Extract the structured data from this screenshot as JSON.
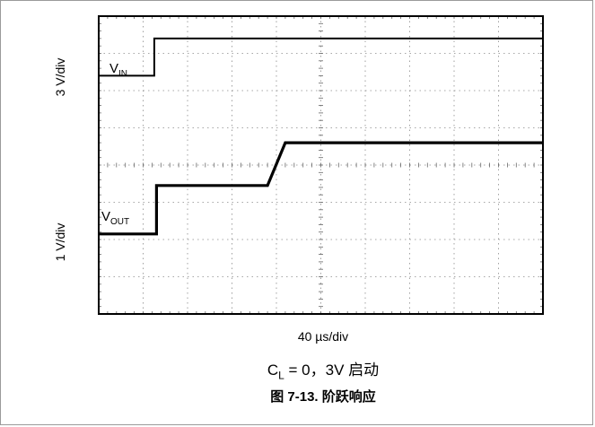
{
  "chart_data": {
    "type": "line",
    "title": "图 7-13. 阶跃响应",
    "subtitle_main": "C",
    "subtitle_sub": "L",
    "subtitle_rest": " = 0，3V 启动",
    "xlabel": "40 µs/div",
    "ylabel_top": "3 V/div",
    "ylabel_bottom": "1 V/div",
    "grid": true,
    "x_divisions": 10,
    "y_divisions": 8,
    "xlim": [
      0,
      10
    ],
    "ylim": [
      0,
      8
    ],
    "series": [
      {
        "name_main": "V",
        "name_sub": "IN",
        "color": "#000000",
        "x": [
          0,
          1.25,
          1.25,
          10
        ],
        "y": [
          6.4,
          6.4,
          7.4,
          7.4
        ]
      },
      {
        "name_main": "V",
        "name_sub": "OUT",
        "color": "#000000",
        "x": [
          0,
          1.3,
          1.3,
          3.8,
          4.2,
          10
        ],
        "y": [
          2.15,
          2.15,
          3.45,
          3.45,
          4.6,
          4.6
        ]
      }
    ]
  }
}
